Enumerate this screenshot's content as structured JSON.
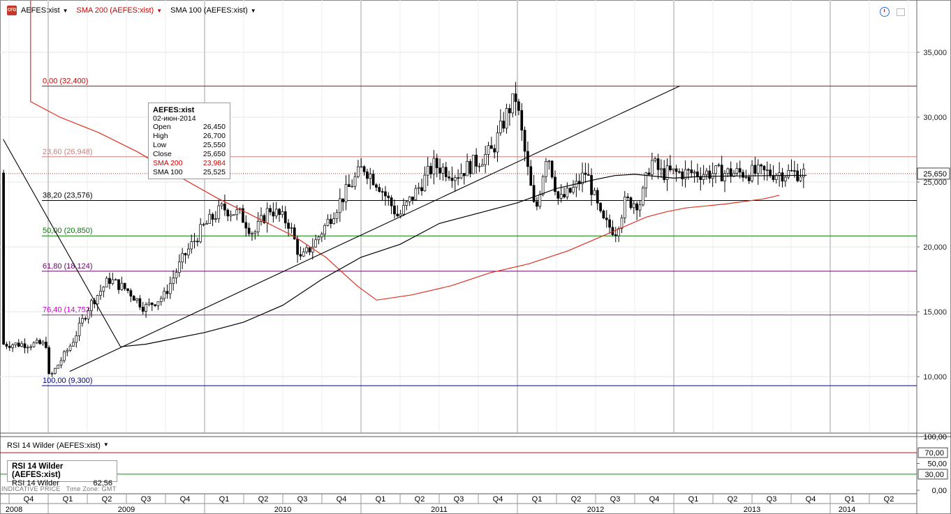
{
  "header": {
    "symbol": "AEFES:xist",
    "sma200_label": "SMA 200 (AEFES:xist)",
    "sma100_label": "SMA 100 (AEFES:xist)",
    "icon": "cfd-icon",
    "tools": [
      "clock-icon",
      "save-icon"
    ]
  },
  "tooltip": {
    "title": "AEFES:xist",
    "date": "02-июн-2014",
    "rows": [
      {
        "label": "Open",
        "value": "26,450"
      },
      {
        "label": "High",
        "value": "26,700"
      },
      {
        "label": "Low",
        "value": "25,550"
      },
      {
        "label": "Close",
        "value": "25,650"
      },
      {
        "label": "SMA 200",
        "value": "23,984"
      },
      {
        "label": "SMA 100",
        "value": "25,525"
      }
    ]
  },
  "rsi_panel": {
    "header": "RSI 14 Wilder (AEFES:xist)",
    "box_title": "RSI 14 Wilder (AEFES:xist)",
    "label": "RSI 14 Wilder",
    "value": "62,56"
  },
  "footer": {
    "indicative": "INDICATIVE PRICE",
    "timezone": "Time Zone: GMT"
  },
  "colors": {
    "sma200": "#e03020",
    "sma100": "#000000",
    "fib_0": "#cc0000",
    "fib_236": "#c88080",
    "fib_382": "#000000",
    "fib_50": "#008000",
    "fib_618": "#660066",
    "fib_764": "#cc00cc",
    "fib_100": "#000080",
    "rsi_levels": "#009900"
  },
  "chart_data": {
    "type": "candlestick",
    "symbol": "AEFES:xist",
    "y_ticks": [
      "35,000",
      "30,000",
      "25,000",
      "20,000",
      "15,000",
      "10,000"
    ],
    "ylim": [
      5700,
      39000
    ],
    "last_price": {
      "value": 25650,
      "label": "25,650"
    },
    "quarters": [
      "Q4",
      "Q1",
      "Q2",
      "Q3",
      "Q4",
      "Q1",
      "Q2",
      "Q3",
      "Q4",
      "Q1",
      "Q2",
      "Q3",
      "Q4",
      "Q1",
      "Q2",
      "Q3",
      "Q4",
      "Q1",
      "Q2",
      "Q3",
      "Q4",
      "Q1",
      "Q2"
    ],
    "years": [
      "2008",
      "2009",
      "2010",
      "2011",
      "2012",
      "2013",
      "2014"
    ],
    "fib_levels": [
      {
        "label": "0,00 (32,400)",
        "value": 32400
      },
      {
        "label": "23,60 (26,948)",
        "value": 26948
      },
      {
        "label": "38,20 (23,576)",
        "value": 23576
      },
      {
        "label": "50,00 (20,850)",
        "value": 20850
      },
      {
        "label": "61,80 (18,124)",
        "value": 18124
      },
      {
        "label": "76,40 (14,752)",
        "value": 14752
      },
      {
        "label": "100,00 (9,300)",
        "value": 9300
      }
    ],
    "ohlc_anchors": [
      [
        0,
        12500
      ],
      [
        0.3,
        12800
      ],
      [
        0.55,
        9500
      ],
      [
        0.75,
        10500
      ],
      [
        1.2,
        10000
      ],
      [
        1.75,
        12600
      ],
      [
        2.2,
        15500
      ],
      [
        2.7,
        17500
      ],
      [
        3.2,
        16600
      ],
      [
        3.6,
        15300
      ],
      [
        4.1,
        16200
      ],
      [
        4.6,
        19200
      ],
      [
        5.1,
        21500
      ],
      [
        5.6,
        23000
      ],
      [
        6.05,
        22500
      ],
      [
        6.4,
        21000
      ],
      [
        6.8,
        23000
      ],
      [
        7.3,
        21800
      ],
      [
        7.6,
        19000
      ],
      [
        8.0,
        20500
      ],
      [
        8.6,
        23500
      ],
      [
        9.2,
        26200
      ],
      [
        9.6,
        24800
      ],
      [
        10.1,
        22300
      ],
      [
        10.6,
        24500
      ],
      [
        11.0,
        26300
      ],
      [
        11.6,
        25600
      ],
      [
        12.1,
        26600
      ],
      [
        12.5,
        27400
      ],
      [
        12.9,
        30500
      ],
      [
        13.1,
        31500
      ],
      [
        13.4,
        26000
      ],
      [
        13.6,
        22500
      ],
      [
        13.9,
        27500
      ],
      [
        14.2,
        23500
      ],
      [
        14.6,
        24500
      ],
      [
        14.9,
        25800
      ],
      [
        15.3,
        22000
      ],
      [
        15.65,
        21200
      ],
      [
        15.9,
        23500
      ],
      [
        16.3,
        23400
      ],
      [
        16.55,
        26700
      ],
      [
        16.8,
        25700
      ]
    ],
    "sma200_points": [
      [
        0,
        39000
      ],
      [
        0,
        31200
      ],
      [
        1,
        30000
      ],
      [
        2,
        28800
      ],
      [
        3,
        27300
      ],
      [
        4,
        25500
      ],
      [
        5,
        23800
      ],
      [
        6,
        22300
      ],
      [
        7,
        20800
      ],
      [
        7.8,
        19200
      ],
      [
        8.6,
        17000
      ],
      [
        9.1,
        15900
      ],
      [
        10,
        16300
      ],
      [
        11,
        17000
      ],
      [
        12,
        18000
      ],
      [
        13,
        18700
      ],
      [
        14,
        19700
      ],
      [
        15,
        21000
      ],
      [
        16,
        22300
      ],
      [
        16.5,
        22700
      ],
      [
        17,
        23000
      ],
      [
        18,
        23300
      ],
      [
        19,
        23700
      ],
      [
        19.4,
        23984
      ]
    ],
    "sma100_points": [
      [
        1.85,
        12300
      ],
      [
        2.5,
        12500
      ],
      [
        3,
        12800
      ],
      [
        4,
        13400
      ],
      [
        5,
        14200
      ],
      [
        6,
        15500
      ],
      [
        7,
        17500
      ],
      [
        8,
        19200
      ],
      [
        9,
        20200
      ],
      [
        10,
        21800
      ],
      [
        11,
        22600
      ],
      [
        12,
        23400
      ],
      [
        13,
        24500
      ],
      [
        14,
        25200
      ],
      [
        14.5,
        25500
      ],
      [
        15,
        25600
      ],
      [
        16,
        25300
      ],
      [
        16.5,
        25400
      ],
      [
        17,
        25450
      ],
      [
        19.4,
        25525
      ]
    ],
    "trend_lines": [
      {
        "from": [
          0,
          28300
        ],
        "to": [
          1.85,
          12300
        ]
      },
      {
        "from": [
          1.7,
          10400
        ],
        "to": [
          16.15,
          32400
        ]
      }
    ],
    "rsi": {
      "name": "RSI 14 Wilder",
      "value": 62.56,
      "y_ticks": [
        "100,00",
        "50,00",
        "0,00"
      ],
      "levels": [
        {
          "value": 70,
          "label": "70,00"
        },
        {
          "value": 30,
          "label": "30,00"
        }
      ]
    }
  }
}
